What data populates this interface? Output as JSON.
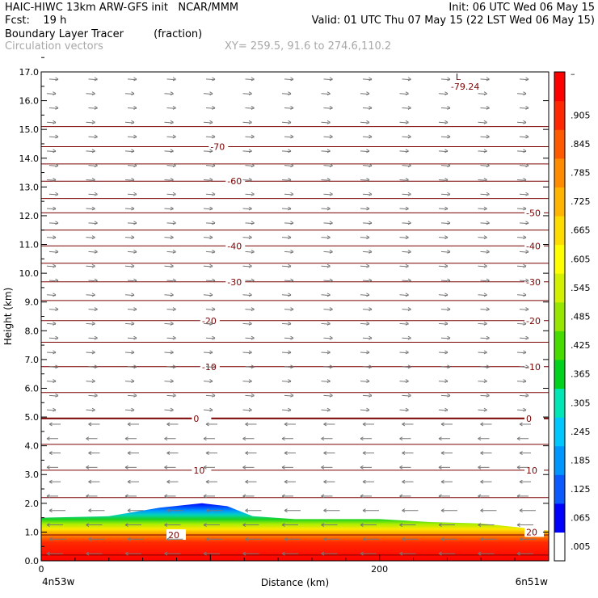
{
  "header": {
    "title_left": "HAIC-HIWC 13km ARW-GFS init   NCAR/MMM",
    "init": "Init: 06 UTC Wed 06 May 15",
    "fcst_label": "Fcst:    19 h",
    "valid": "Valid: 01 UTC Thu 07 May 15 (22 LST Wed 06 May 15)",
    "field": "Boundary Layer Tracer         (fraction)",
    "vectors": "Circulation vectors",
    "xy": "XY= 259.5, 91.6 to 274.6,110.2"
  },
  "chart_data": {
    "type": "area",
    "ylabel": "Height (km)",
    "xlabel": "Distance (km)",
    "xlim": [
      0,
      300
    ],
    "ylim": [
      0.0,
      17.0
    ],
    "y_ticks": [
      "0.0",
      "1.0",
      "2.0",
      "3.0",
      "4.0",
      "5.0",
      "6.0",
      "7.0",
      "8.0",
      "9.0",
      "10.0",
      "11.0",
      "12.0",
      "13.0",
      "14.0",
      "15.0",
      "16.0",
      "17.0"
    ],
    "x_tick_labels": [
      {
        "x": 0,
        "label": "0"
      },
      {
        "x": 200,
        "label": "200"
      }
    ],
    "x_endpoints": {
      "left": "4n53w",
      "right": "6n51w"
    },
    "colorbar": {
      "labels": [
        ".005",
        ".065",
        ".125",
        ".185",
        ".245",
        ".305",
        ".365",
        ".425",
        ".485",
        ".545",
        ".605",
        ".665",
        ".725",
        ".785",
        ".845",
        ".905"
      ],
      "top_label": "–",
      "colors": [
        "#ffffff",
        "#0000ff",
        "#0a5aff",
        "#0096ff",
        "#00c8ff",
        "#00e6b4",
        "#00d21e",
        "#46dc00",
        "#96e600",
        "#d2f000",
        "#ffff00",
        "#ffdc00",
        "#ffb400",
        "#ff8c00",
        "#ff5a00",
        "#ff2800",
        "#ff0000"
      ]
    },
    "tracer_top_km": [
      [
        0,
        1.5
      ],
      [
        40,
        1.55
      ],
      [
        70,
        1.85
      ],
      [
        95,
        2.0
      ],
      [
        110,
        1.9
      ],
      [
        125,
        1.55
      ],
      [
        150,
        1.45
      ],
      [
        200,
        1.45
      ],
      [
        230,
        1.35
      ],
      [
        260,
        1.3
      ],
      [
        300,
        1.05
      ]
    ],
    "isotherms": [
      {
        "y": 0.9,
        "label": "20",
        "positions": [
          [
            75,
            0.9
          ],
          [
            300,
            1.0
          ]
        ]
      },
      {
        "y": 3.15,
        "label": "10",
        "positions": [
          [
            90,
            3.15
          ],
          [
            300,
            3.15
          ]
        ]
      },
      {
        "y": 4.95,
        "label": "0",
        "positions": [
          [
            90,
            4.95
          ],
          [
            300,
            4.95
          ]
        ]
      },
      {
        "y": 6.75,
        "label": "-10",
        "positions": [
          [
            95,
            6.75
          ],
          [
            300,
            6.75
          ]
        ]
      },
      {
        "y": 8.35,
        "label": "-20",
        "positions": [
          [
            95,
            8.35
          ],
          [
            300,
            8.35
          ]
        ]
      },
      {
        "y": 9.7,
        "label": "-30",
        "positions": [
          [
            110,
            9.7
          ],
          [
            300,
            9.7
          ]
        ]
      },
      {
        "y": 10.95,
        "label": "-40",
        "positions": [
          [
            110,
            10.95
          ],
          [
            300,
            10.95
          ]
        ]
      },
      {
        "y": 12.1,
        "label": "-50",
        "positions": [
          [
            300,
            12.1
          ]
        ]
      },
      {
        "y": 13.2,
        "label": "-60",
        "positions": [
          [
            110,
            13.2
          ]
        ]
      },
      {
        "y": 14.4,
        "label": "-70",
        "positions": [
          [
            100,
            14.4
          ]
        ]
      }
    ],
    "isotherm_levels_km": [
      0.2,
      0.9,
      2.2,
      3.15,
      4.05,
      4.95,
      5.85,
      6.75,
      7.6,
      8.35,
      9.05,
      9.7,
      10.35,
      10.95,
      11.5,
      12.1,
      12.6,
      13.2,
      13.8,
      14.4,
      15.1
    ],
    "low_marker": {
      "x": 245,
      "y": 16.8,
      "symbol": "L",
      "value": "-79.24"
    },
    "vectors": {
      "direction_change_km": 5.1,
      "upper": "eastward",
      "lower": "westward"
    }
  }
}
